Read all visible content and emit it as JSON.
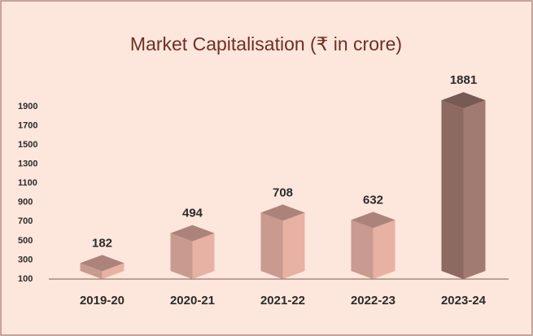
{
  "chart_data": {
    "type": "bar3d",
    "title": "Market Capitalisation (₹ in crore)",
    "categories": [
      "2019-20",
      "2020-21",
      "2021-22",
      "2022-23",
      "2023-24"
    ],
    "values": [
      182,
      494,
      708,
      632,
      1881
    ],
    "colors": [
      "#c99a8f",
      "#c99a8f",
      "#c99a8f",
      "#c99a8f",
      "#8c6a62"
    ],
    "ylim": [
      100,
      1900
    ],
    "yticks": [
      100,
      300,
      500,
      700,
      900,
      1100,
      1300,
      1500,
      1700,
      1900
    ]
  }
}
